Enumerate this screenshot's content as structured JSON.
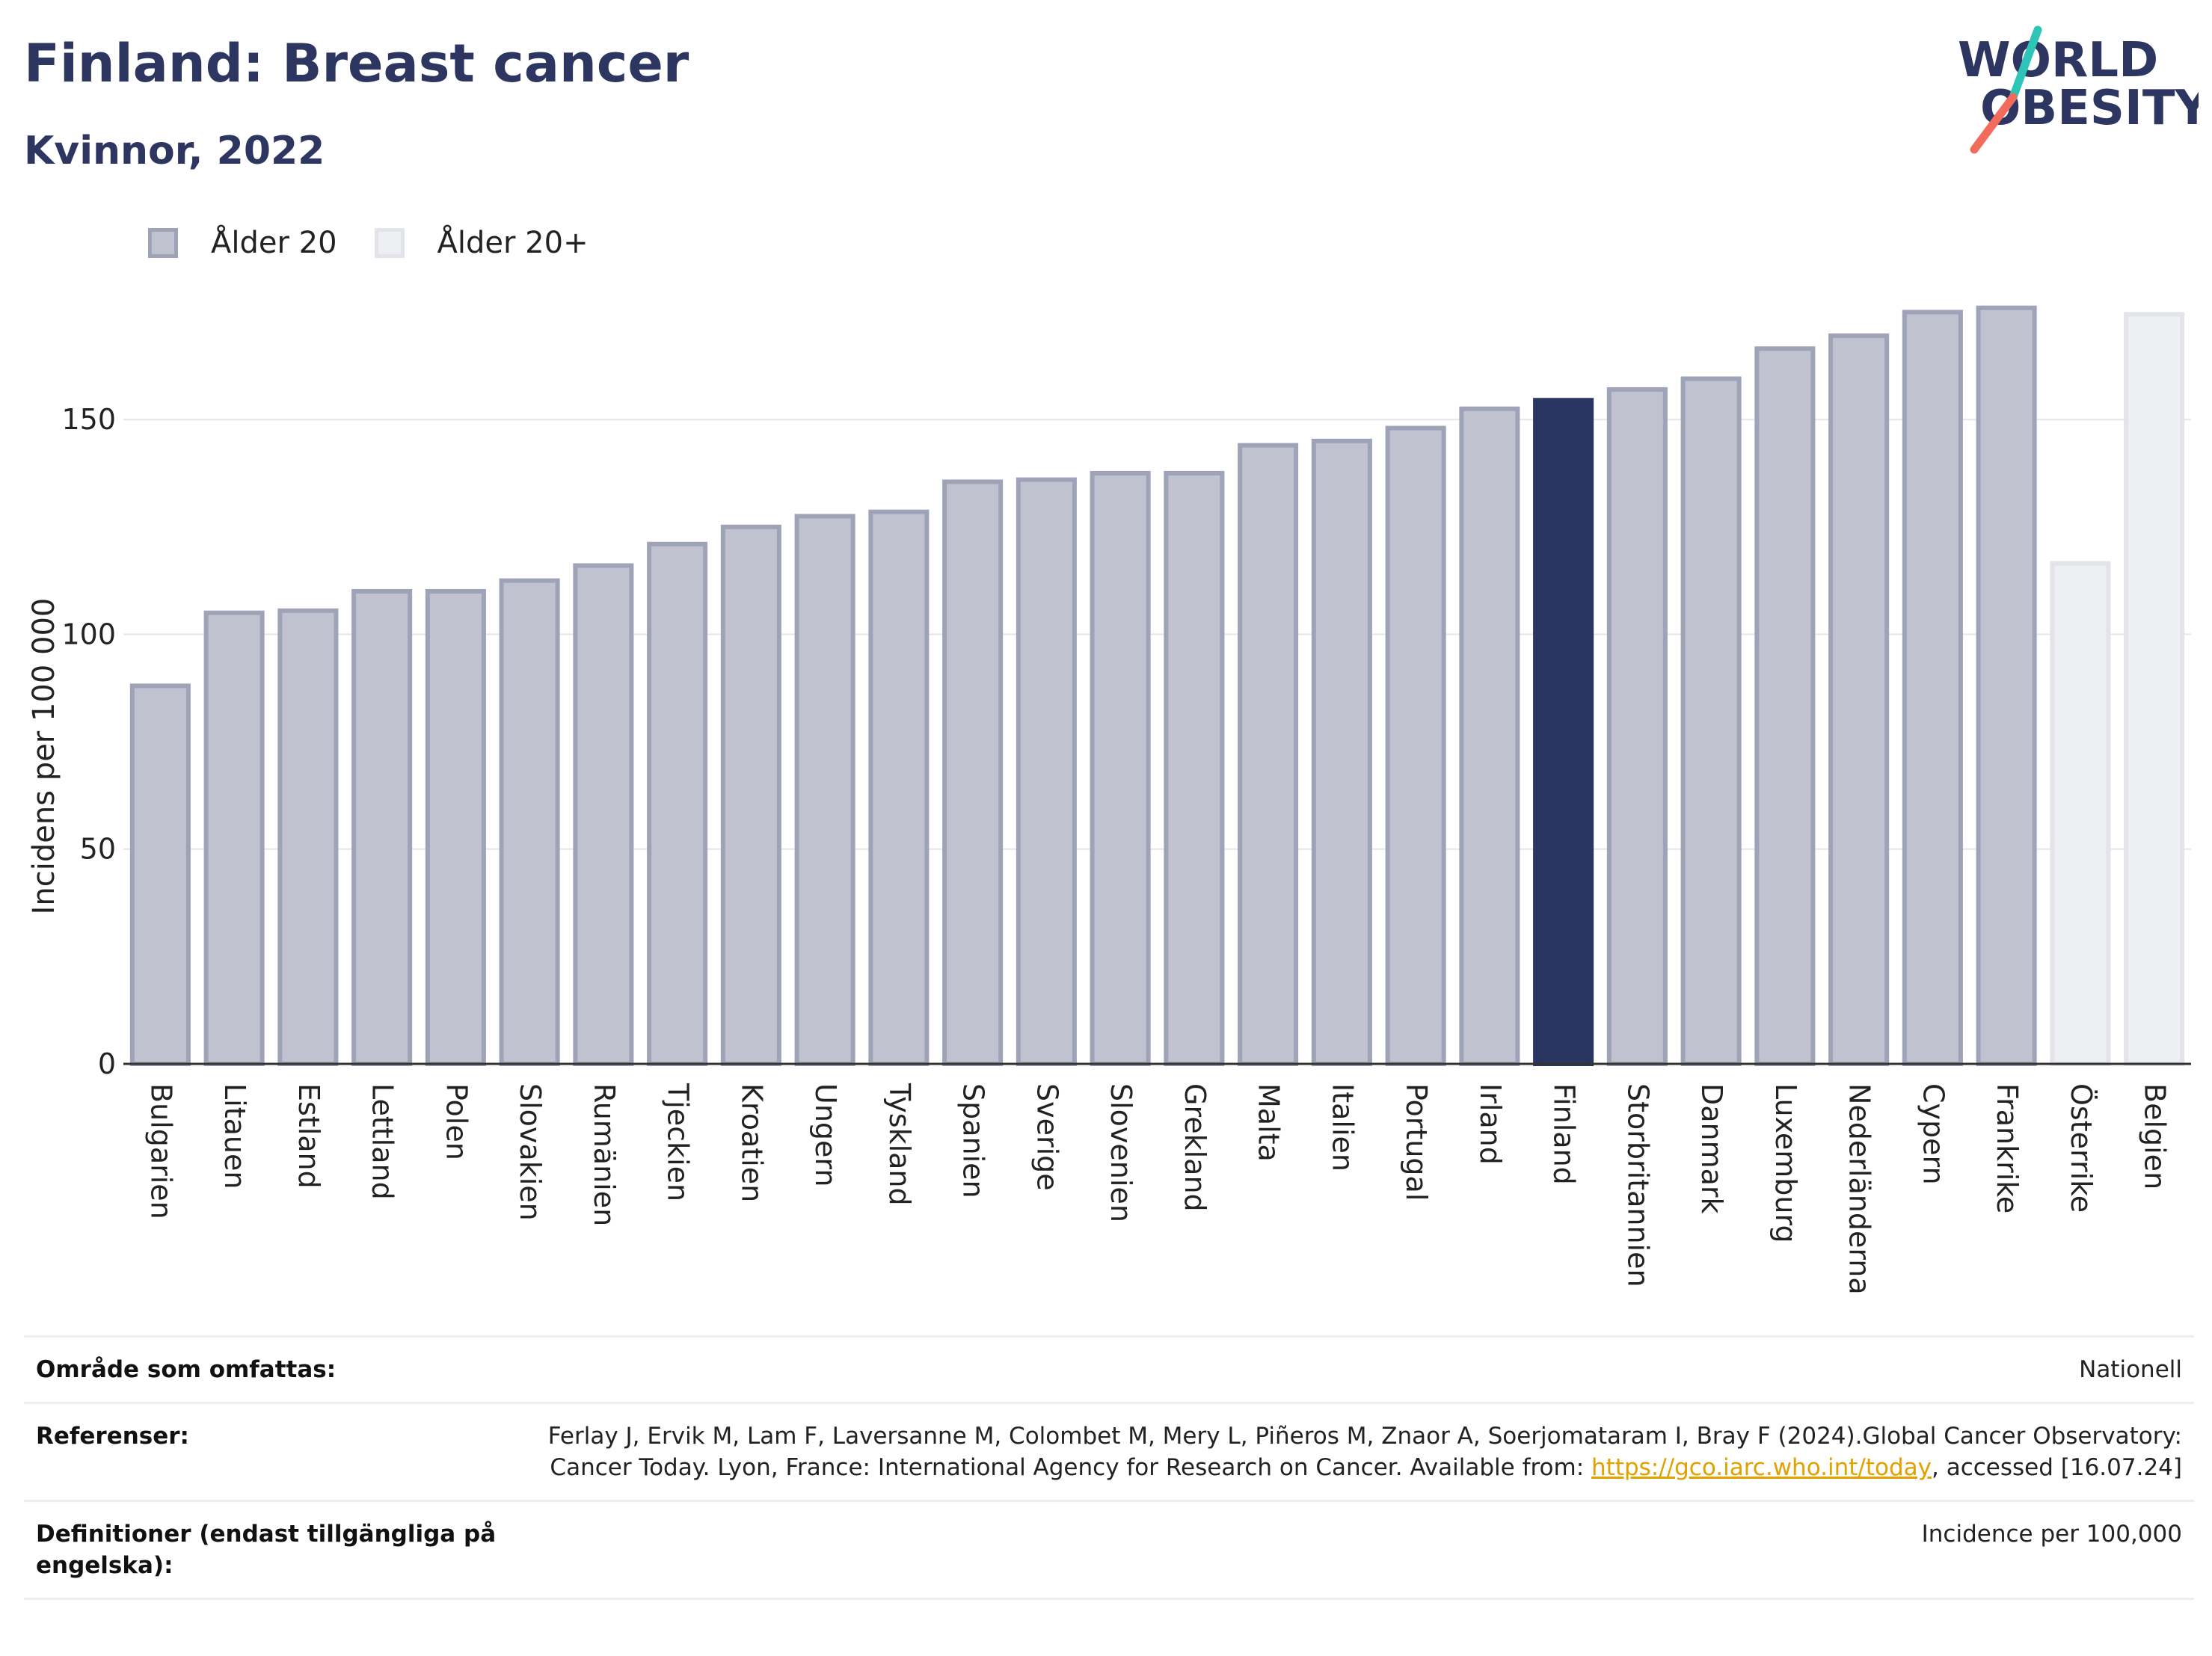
{
  "header": {
    "title": "Finland: Breast cancer",
    "subtitle": "Kvinnor, 2022"
  },
  "logo": {
    "line1": "WORLD",
    "line2": "OBESITY",
    "accent_colors": [
      "#2ec4b6",
      "#f26b5b"
    ]
  },
  "legend": {
    "items": [
      {
        "label": "Ålder 20",
        "fill": "#c0c3cf",
        "stroke": "#9ea3b8"
      },
      {
        "label": "Ålder 20+",
        "fill": "#eeeff3",
        "stroke": "#e2e4ea"
      }
    ]
  },
  "colors": {
    "highlight": "#2a3561",
    "bar_fill": "#c0c3cf",
    "bar_stroke": "#9ea3b8",
    "bar_light_fill": "#eeeff3",
    "bar_light_stroke": "#e2e4ea",
    "grid": "#e6e6ea"
  },
  "chart_data": {
    "type": "bar",
    "title": "Finland: Breast cancer",
    "subtitle": "Kvinnor, 2022",
    "xlabel": "",
    "ylabel": "Incidens per 100 000",
    "ylim": [
      0,
      185
    ],
    "yticks": [
      0,
      50,
      100,
      150
    ],
    "grid": true,
    "legend_position": "top-left",
    "highlight": "Finland",
    "categories": [
      "Bulgarien",
      "Litauen",
      "Estland",
      "Lettland",
      "Polen",
      "Slovakien",
      "Rumänien",
      "Tjeckien",
      "Kroatien",
      "Ungern",
      "Tyskland",
      "Spanien",
      "Sverige",
      "Slovenien",
      "Grekland",
      "Malta",
      "Italien",
      "Portugal",
      "Irland",
      "Finland",
      "Storbritannien",
      "Danmark",
      "Luxemburg",
      "Nederländerna",
      "Cypern",
      "Frankrike",
      "Österrike",
      "Belgien"
    ],
    "values": [
      88,
      105,
      105.5,
      110,
      110,
      112.5,
      116,
      121,
      125,
      127.5,
      128.5,
      135.5,
      136,
      137.5,
      137.5,
      144,
      145,
      148,
      152.5,
      154.5,
      157,
      159.5,
      166.5,
      169.5,
      175,
      176,
      116.5,
      174.5
    ],
    "series_group": [
      "Ålder 20",
      "Ålder 20",
      "Ålder 20",
      "Ålder 20",
      "Ålder 20",
      "Ålder 20",
      "Ålder 20",
      "Ålder 20",
      "Ålder 20",
      "Ålder 20",
      "Ålder 20",
      "Ålder 20",
      "Ålder 20",
      "Ålder 20",
      "Ålder 20",
      "Ålder 20",
      "Ålder 20",
      "Ålder 20",
      "Ålder 20",
      "Ålder 20",
      "Ålder 20",
      "Ålder 20",
      "Ålder 20",
      "Ålder 20",
      "Ålder 20",
      "Ålder 20",
      "Ålder 20+",
      "Ålder 20+"
    ]
  },
  "footer": {
    "rows": [
      {
        "label": "Område som omfattas:",
        "value": "Nationell"
      },
      {
        "label": "Referenser:",
        "value_pre": "Ferlay J, Ervik M, Lam F, Laversanne M, Colombet M, Mery L, Piñeros M, Znaor A, Soerjomataram I, Bray F (2024).Global Cancer Observatory: Cancer Today. Lyon, France: International Agency for Research on Cancer. Available from: ",
        "link": "https://gco.iarc.who.int/today",
        "value_post": ", accessed [16.07.24]"
      },
      {
        "label": "Definitioner (endast tillgängliga på engelska):",
        "value": "Incidence per 100,000"
      }
    ]
  }
}
